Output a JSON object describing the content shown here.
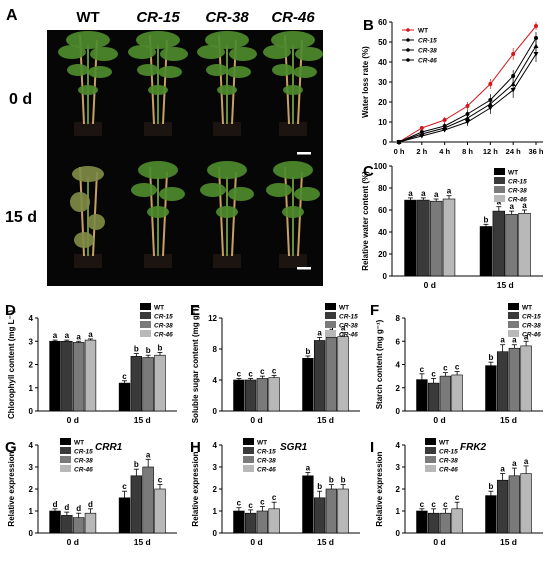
{
  "panel_a": {
    "letter": "A",
    "genotypes": [
      "WT",
      "CR-15",
      "CR-38",
      "CR-46"
    ],
    "rows": [
      "0 d",
      "15 d"
    ]
  },
  "legend_names": [
    "WT",
    "CR-15",
    "CR-38",
    "CR-46"
  ],
  "colors": {
    "WT": "#000000",
    "CR-15": "#3a3a3a",
    "CR-38": "#7a7a7a",
    "CR-46": "#b8b8b8",
    "wt_line": "#d0181c",
    "photo_bg": "#060606",
    "leaf": "#4e8a2c",
    "stake": "#c9a063"
  },
  "chart_data": [
    {
      "id": "B",
      "letter": "B",
      "type": "line",
      "ylabel": "Water loss rate (%)",
      "xlabel": "",
      "x": [
        "0 h",
        "2 h",
        "4 h",
        "8 h",
        "12 h",
        "24 h",
        "36 h"
      ],
      "ylim": [
        0,
        60
      ],
      "yticks": [
        0,
        10,
        20,
        30,
        40,
        50,
        60
      ],
      "series": [
        {
          "name": "WT",
          "values": [
            0,
            7,
            11,
            18,
            29,
            44,
            58
          ],
          "err": [
            0,
            1,
            1.5,
            2,
            2.5,
            3,
            2
          ]
        },
        {
          "name": "CR-15",
          "values": [
            0,
            5,
            8,
            14,
            21,
            33,
            52
          ],
          "err": [
            0,
            1,
            1.5,
            2,
            3,
            3,
            3
          ]
        },
        {
          "name": "CR-38",
          "values": [
            0,
            4,
            7,
            12,
            19,
            29,
            48
          ],
          "err": [
            0,
            1,
            1.5,
            2,
            3,
            4,
            4
          ]
        },
        {
          "name": "CR-46",
          "values": [
            0,
            3,
            6,
            10,
            17,
            26,
            44
          ],
          "err": [
            0,
            1,
            1,
            2,
            3,
            4,
            4
          ]
        }
      ]
    },
    {
      "id": "C",
      "letter": "C",
      "type": "bar",
      "ylabel": "Relative water content (%)",
      "categories": [
        "0 d",
        "15 d"
      ],
      "ylim": [
        0,
        100
      ],
      "yticks": [
        0,
        20,
        40,
        60,
        80,
        100
      ],
      "series": [
        {
          "name": "WT",
          "values": [
            69,
            45
          ],
          "err": [
            2,
            2
          ],
          "letters": [
            "a",
            "b"
          ]
        },
        {
          "name": "CR-15",
          "values": [
            69,
            59
          ],
          "err": [
            2,
            4
          ],
          "letters": [
            "a",
            "a"
          ]
        },
        {
          "name": "CR-38",
          "values": [
            68,
            56
          ],
          "err": [
            2,
            3
          ],
          "letters": [
            "a",
            "a"
          ]
        },
        {
          "name": "CR-46",
          "values": [
            70,
            57
          ],
          "err": [
            3,
            3
          ],
          "letters": [
            "a",
            "a"
          ]
        }
      ]
    },
    {
      "id": "D",
      "letter": "D",
      "type": "bar",
      "ylabel": "Chlorophyll content (mg L⁻¹)",
      "categories": [
        "0 d",
        "15 d"
      ],
      "ylim": [
        0,
        4
      ],
      "yticks": [
        0,
        1,
        2,
        3,
        4
      ],
      "series": [
        {
          "name": "WT",
          "values": [
            3.0,
            1.2
          ],
          "err": [
            0.05,
            0.1
          ],
          "letters": [
            "a",
            "c"
          ]
        },
        {
          "name": "CR-15",
          "values": [
            3.0,
            2.35
          ],
          "err": [
            0.05,
            0.12
          ],
          "letters": [
            "a",
            "b"
          ]
        },
        {
          "name": "CR-38",
          "values": [
            2.95,
            2.3
          ],
          "err": [
            0.05,
            0.1
          ],
          "letters": [
            "a",
            "b"
          ]
        },
        {
          "name": "CR-46",
          "values": [
            3.05,
            2.4
          ],
          "err": [
            0.05,
            0.12
          ],
          "letters": [
            "a",
            "b"
          ]
        }
      ]
    },
    {
      "id": "E",
      "letter": "E",
      "type": "bar",
      "ylabel": "Soluble sugar content (mg g⁻¹)",
      "categories": [
        "0 d",
        "15 d"
      ],
      "ylim": [
        0,
        12
      ],
      "yticks": [
        0,
        4,
        8,
        12
      ],
      "series": [
        {
          "name": "WT",
          "values": [
            4.0,
            6.8
          ],
          "err": [
            0.2,
            0.3
          ],
          "letters": [
            "c",
            "b"
          ]
        },
        {
          "name": "CR-15",
          "values": [
            4.0,
            9.1
          ],
          "err": [
            0.2,
            0.4
          ],
          "letters": [
            "c",
            "a"
          ]
        },
        {
          "name": "CR-38",
          "values": [
            4.2,
            9.5
          ],
          "err": [
            0.3,
            0.5
          ],
          "letters": [
            "c",
            "a"
          ]
        },
        {
          "name": "CR-46",
          "values": [
            4.3,
            9.6
          ],
          "err": [
            0.3,
            0.5
          ],
          "letters": [
            "c",
            "a"
          ]
        }
      ]
    },
    {
      "id": "F",
      "letter": "F",
      "type": "bar",
      "ylabel": "Starch content (mg g⁻¹)",
      "categories": [
        "0 d",
        "15 d"
      ],
      "ylim": [
        0,
        8
      ],
      "yticks": [
        0,
        2,
        4,
        6,
        8
      ],
      "series": [
        {
          "name": "WT",
          "values": [
            2.7,
            3.9
          ],
          "err": [
            0.5,
            0.3
          ],
          "letters": [
            "c",
            "b"
          ]
        },
        {
          "name": "CR-15",
          "values": [
            2.4,
            5.1
          ],
          "err": [
            0.4,
            0.6
          ],
          "letters": [
            "c",
            "a"
          ]
        },
        {
          "name": "CR-38",
          "values": [
            3.0,
            5.4
          ],
          "err": [
            0.3,
            0.3
          ],
          "letters": [
            "c",
            "a"
          ]
        },
        {
          "name": "CR-46",
          "values": [
            3.1,
            5.6
          ],
          "err": [
            0.3,
            0.4
          ],
          "letters": [
            "c",
            "a"
          ]
        }
      ]
    },
    {
      "id": "G",
      "letter": "G",
      "type": "bar",
      "gene": "CRR1",
      "ylabel": "Relative expression",
      "categories": [
        "0 d",
        "15 d"
      ],
      "ylim": [
        0,
        4
      ],
      "yticks": [
        0,
        1,
        2,
        3,
        4
      ],
      "series": [
        {
          "name": "WT",
          "values": [
            1.0,
            1.6
          ],
          "err": [
            0.1,
            0.3
          ],
          "letters": [
            "d",
            "c"
          ]
        },
        {
          "name": "CR-15",
          "values": [
            0.8,
            2.6
          ],
          "err": [
            0.15,
            0.3
          ],
          "letters": [
            "d",
            "b"
          ]
        },
        {
          "name": "CR-38",
          "values": [
            0.7,
            3.0
          ],
          "err": [
            0.2,
            0.35
          ],
          "letters": [
            "d",
            "a"
          ]
        },
        {
          "name": "CR-46",
          "values": [
            0.9,
            2.0
          ],
          "err": [
            0.2,
            0.2
          ],
          "letters": [
            "d",
            "c"
          ]
        }
      ]
    },
    {
      "id": "H",
      "letter": "H",
      "type": "bar",
      "gene": "SGR1",
      "ylabel": "Relative expression",
      "categories": [
        "0 d",
        "15 d"
      ],
      "ylim": [
        0,
        4
      ],
      "yticks": [
        0,
        1,
        2,
        3,
        4
      ],
      "series": [
        {
          "name": "WT",
          "values": [
            1.0,
            2.6
          ],
          "err": [
            0.15,
            0.15
          ],
          "letters": [
            "c",
            "a"
          ]
        },
        {
          "name": "CR-15",
          "values": [
            0.9,
            1.6
          ],
          "err": [
            0.15,
            0.3
          ],
          "letters": [
            "c",
            "b"
          ]
        },
        {
          "name": "CR-38",
          "values": [
            1.0,
            2.0
          ],
          "err": [
            0.2,
            0.2
          ],
          "letters": [
            "c",
            "b"
          ]
        },
        {
          "name": "CR-46",
          "values": [
            1.1,
            2.0
          ],
          "err": [
            0.3,
            0.2
          ],
          "letters": [
            "c",
            "b"
          ]
        }
      ]
    },
    {
      "id": "I",
      "letter": "I",
      "type": "bar",
      "gene": "FRK2",
      "ylabel": "Relative expression",
      "categories": [
        "0 d",
        "15 d"
      ],
      "ylim": [
        0,
        4
      ],
      "yticks": [
        0,
        1,
        2,
        3,
        4
      ],
      "series": [
        {
          "name": "WT",
          "values": [
            1.0,
            1.7
          ],
          "err": [
            0.1,
            0.2
          ],
          "letters": [
            "c",
            "b"
          ]
        },
        {
          "name": "CR-15",
          "values": [
            0.9,
            2.4
          ],
          "err": [
            0.2,
            0.3
          ],
          "letters": [
            "c",
            "a"
          ]
        },
        {
          "name": "CR-38",
          "values": [
            0.9,
            2.6
          ],
          "err": [
            0.2,
            0.35
          ],
          "letters": [
            "c",
            "a"
          ]
        },
        {
          "name": "CR-46",
          "values": [
            1.1,
            2.7
          ],
          "err": [
            0.3,
            0.35
          ],
          "letters": [
            "c",
            "a"
          ]
        }
      ]
    }
  ]
}
